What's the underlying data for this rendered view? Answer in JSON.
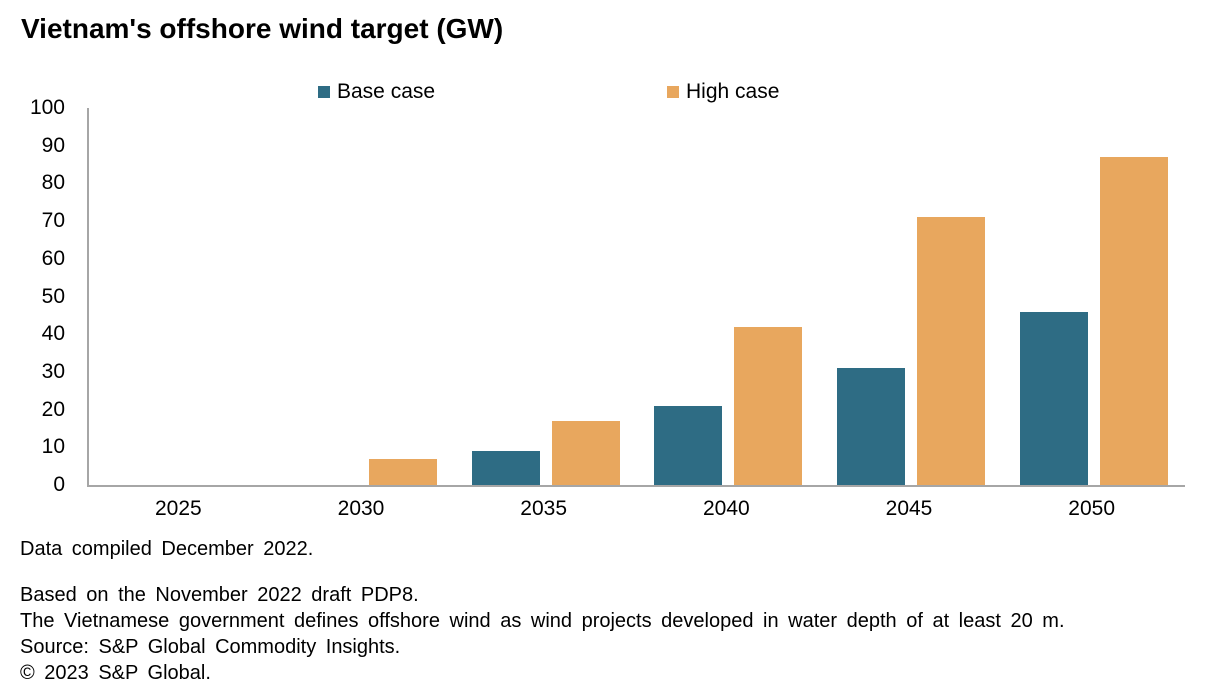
{
  "chart_data": {
    "type": "bar",
    "title": "Vietnam's offshore wind target (GW)",
    "categories": [
      "2025",
      "2030",
      "2035",
      "2040",
      "2045",
      "2050"
    ],
    "series": [
      {
        "name": "Base case",
        "color": "#2e6c84",
        "values": [
          0,
          0,
          9,
          21,
          31,
          46
        ]
      },
      {
        "name": "High case",
        "color": "#e8a75e",
        "values": [
          0,
          7,
          17,
          42,
          71,
          87
        ]
      }
    ],
    "xlabel": "",
    "ylabel": "",
    "ylim": [
      0,
      100
    ],
    "yticks": [
      0,
      10,
      20,
      30,
      40,
      50,
      60,
      70,
      80,
      90,
      100
    ],
    "grid": false,
    "legend_position": "top",
    "axis_color": "#a6a6a6"
  },
  "footer": {
    "compiled": "Data compiled December 2022.",
    "note1": "Based on the November 2022 draft PDP8.",
    "note2": "The Vietnamese government defines offshore wind as wind projects developed in water depth of at least 20 m.",
    "source": "Source: S&P Global Commodity Insights.",
    "copyright": "© 2023 S&P Global."
  }
}
